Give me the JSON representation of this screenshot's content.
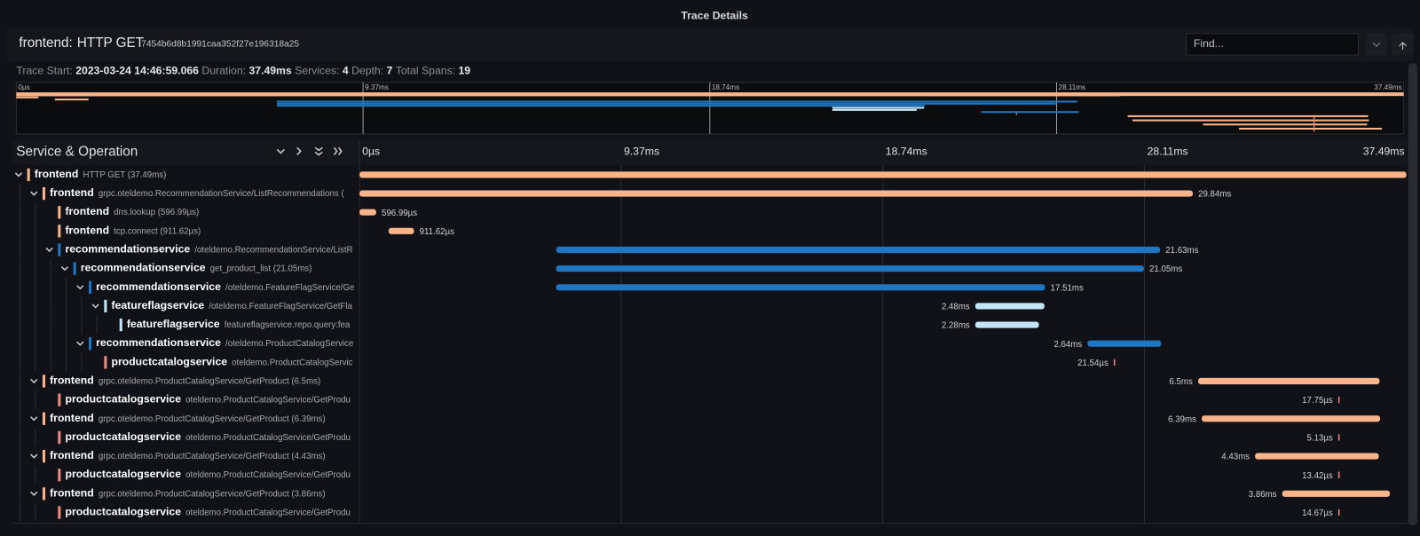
{
  "header": {
    "title": "Trace Details",
    "service": "frontend:",
    "operation": "HTTP GET",
    "trace_id": "7454b6d8b1991caa352f27e196318a25",
    "find_placeholder": "Find..."
  },
  "info": {
    "start_label": "Trace Start:",
    "start": "2023-03-24 14:46:59.066",
    "duration_label": "Duration:",
    "duration": "37.49ms",
    "services_label": "Services:",
    "services": 4,
    "depth_label": "Depth:",
    "depth": 7,
    "spans_label": "Total Spans:",
    "spans": 19
  },
  "timeline": {
    "column_title": "Service & Operation",
    "range": [
      0,
      37.49
    ],
    "ticks": [
      {
        "value": 0,
        "label": "0µs"
      },
      {
        "value": 9.37,
        "label": "9.37ms"
      },
      {
        "value": 18.74,
        "label": "18.74ms"
      },
      {
        "value": 28.11,
        "label": "28.11ms"
      },
      {
        "value": 37.49,
        "label": "37.49ms"
      }
    ]
  },
  "spans": [
    {
      "service": "frontend",
      "operation": "HTTP GET (37.49ms)",
      "color": "#f9b48a",
      "start": 0,
      "duration": 37.49,
      "children": [
        {
          "service": "frontend",
          "operation": "grpc.oteldemo.RecommendationService/ListRecommendations (",
          "color": "#f9b48a",
          "start": 0,
          "duration": 29.84,
          "duration_label": "29.84ms",
          "children": [
            {
              "service": "frontend",
              "operation": "dns.lookup (596.99µs)",
              "color": "#f9b48a",
              "start": 0,
              "duration": 0.597,
              "duration_label": "596.99µs"
            },
            {
              "service": "frontend",
              "operation": "tcp.connect (911.62µs)",
              "color": "#f9b48a",
              "start": 1.04,
              "duration": 0.912,
              "duration_label": "911.62µs"
            },
            {
              "service": "recommendationservice",
              "operation": "/oteldemo.RecommendationService/ListR",
              "color": "#1f77c4",
              "start": 7.04,
              "duration": 21.63,
              "duration_label": "21.63ms",
              "children": [
                {
                  "service": "recommendationservice",
                  "operation": "get_product_list (21.05ms)",
                  "color": "#1f77c4",
                  "start": 7.04,
                  "duration": 21.05,
                  "duration_label": "21.05ms",
                  "children": [
                    {
                      "service": "recommendationservice",
                      "operation": "/oteldemo.FeatureFlagService/Ge",
                      "color": "#1f77c4",
                      "start": 7.04,
                      "duration": 17.51,
                      "duration_label": "17.51ms",
                      "children": [
                        {
                          "service": "featureflagservice",
                          "operation": "/oteldemo.FeatureFlagService/GetFla",
                          "color": "#c4e4f8",
                          "start": 22.05,
                          "duration": 2.48,
                          "duration_label": "2.48ms",
                          "children": [
                            {
                              "service": "featureflagservice",
                              "operation": "featureflagservice.repo.query:fea",
                              "color": "#c4e4f8",
                              "start": 22.05,
                              "duration": 2.28,
                              "duration_label": "2.28ms"
                            }
                          ]
                        }
                      ]
                    },
                    {
                      "service": "recommendationservice",
                      "operation": "/oteldemo.ProductCatalogService",
                      "color": "#1f77c4",
                      "start": 26.07,
                      "duration": 2.64,
                      "duration_label": "2.64ms",
                      "children": [
                        {
                          "service": "productcatalogservice",
                          "operation": "oteldemo.ProductCatalogServic",
                          "color": "#ee8a83",
                          "start": 27.01,
                          "duration": 0.02154,
                          "duration_label": "21.54µs"
                        }
                      ]
                    }
                  ]
                }
              ]
            }
          ]
        },
        {
          "service": "frontend",
          "operation": "grpc.oteldemo.ProductCatalogService/GetProduct (6.5ms)",
          "color": "#f9b48a",
          "start": 30.03,
          "duration": 6.5,
          "duration_label": "6.5ms",
          "children": [
            {
              "service": "productcatalogservice",
              "operation": "oteldemo.ProductCatalogService/GetProdu",
              "color": "#ee8a83",
              "start": 35.05,
              "duration": 0.01775,
              "duration_label": "17.75µs"
            }
          ]
        },
        {
          "service": "frontend",
          "operation": "grpc.oteldemo.ProductCatalogService/GetProduct (6.39ms)",
          "color": "#f9b48a",
          "start": 30.16,
          "duration": 6.39,
          "duration_label": "6.39ms",
          "children": [
            {
              "service": "productcatalogservice",
              "operation": "oteldemo.ProductCatalogService/GetProdu",
              "color": "#ee8a83",
              "start": 35.05,
              "duration": 0.00513,
              "duration_label": "5.13µs"
            }
          ]
        },
        {
          "service": "frontend",
          "operation": "grpc.oteldemo.ProductCatalogService/GetProduct (4.43ms)",
          "color": "#f9b48a",
          "start": 32.07,
          "duration": 4.43,
          "duration_label": "4.43ms",
          "children": [
            {
              "service": "productcatalogservice",
              "operation": "oteldemo.ProductCatalogService/GetProdu",
              "color": "#ee8a83",
              "start": 35.05,
              "duration": 0.01342,
              "duration_label": "13.42µs"
            }
          ]
        },
        {
          "service": "frontend",
          "operation": "grpc.oteldemo.ProductCatalogService/GetProduct (3.86ms)",
          "color": "#f9b48a",
          "start": 33.04,
          "duration": 3.86,
          "duration_label": "3.86ms",
          "children": [
            {
              "service": "productcatalogservice",
              "operation": "oteldemo.ProductCatalogService/GetProdu",
              "color": "#ee8a83",
              "start": 35.05,
              "duration": 0.01467,
              "duration_label": "14.67µs"
            }
          ]
        }
      ]
    }
  ]
}
